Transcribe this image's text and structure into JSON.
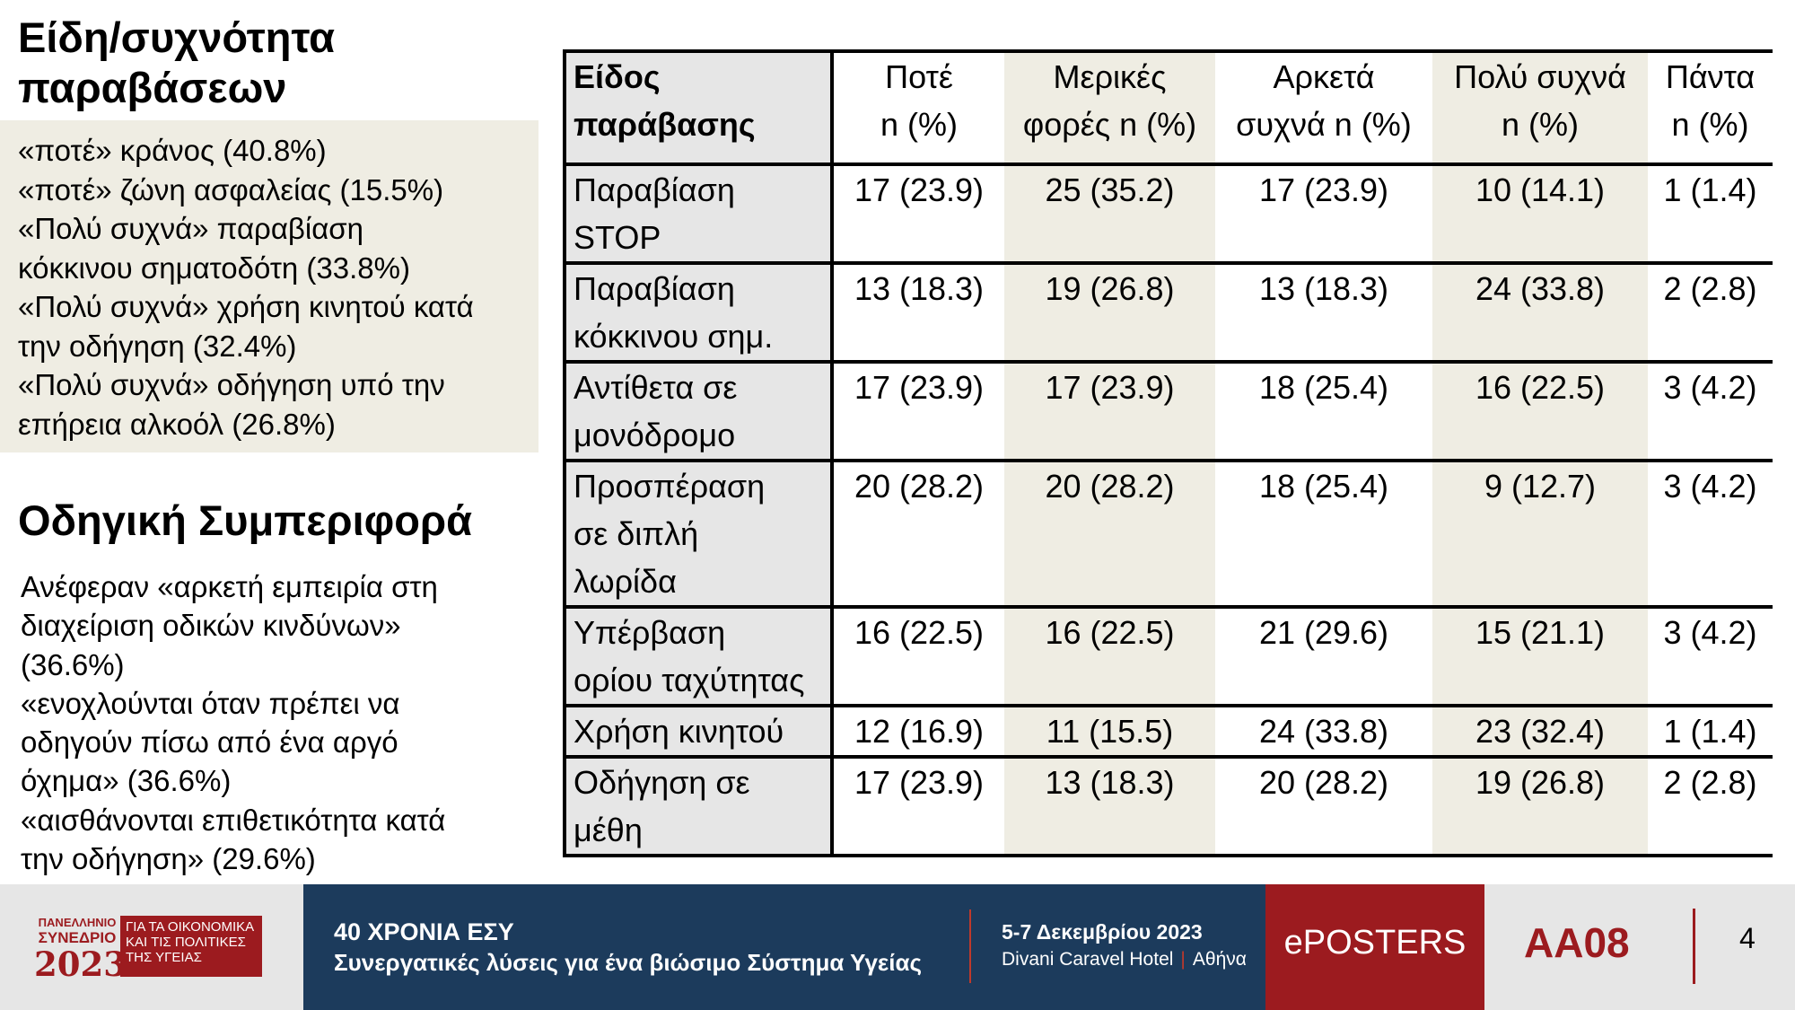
{
  "left": {
    "violations_title": "Είδη/συχνότητα παραβάσεων",
    "violations_lines": [
      "«ποτέ» κράνος (40.8%)",
      "«ποτέ» ζώνη ασφαλείας (15.5%)",
      "«Πολύ συχνά» παραβίαση",
      "κόκκινου σηματοδότη (33.8%)",
      "«Πολύ συχνά» χρήση κινητού κατά",
      "την οδήγηση (32.4%)",
      "«Πολύ συχνά» οδήγηση υπό την",
      "επήρεια αλκοόλ (26.8%)"
    ],
    "behavior_title": "Οδηγική Συμπεριφορά",
    "behavior_lines": [
      "Ανέφεραν «αρκετή εμπειρία στη",
      "διαχείριση οδικών κινδύνων»",
      "(36.6%)",
      "«ενοχλούνται όταν πρέπει να",
      "οδηγούν πίσω από ένα αργό",
      "όχημα» (36.6%)",
      "«αισθάνονται επιθετικότητα κατά",
      "την οδήγηση» (29.6%)"
    ]
  },
  "table": {
    "headers": [
      "Είδος\nπαράβασης",
      "Ποτέ\nn (%)",
      "Μερικές\nφορές n (%)",
      "Αρκετά\nσυχνά n (%)",
      "Πολύ συχνά\nn (%)",
      "Πάντα\nn (%)"
    ],
    "rows": [
      {
        "type": "Παραβίαση\nSTOP",
        "values": [
          "17 (23.9)",
          "25 (35.2)",
          "17 (23.9)",
          "10 (14.1)",
          "1 (1.4)"
        ]
      },
      {
        "type": "Παραβίαση\nκόκκινου σημ.",
        "values": [
          "13 (18.3)",
          "19 (26.8)",
          "13 (18.3)",
          "24 (33.8)",
          "2 (2.8)"
        ]
      },
      {
        "type": "Αντίθετα σε\nμονόδρομο",
        "values": [
          "17 (23.9)",
          "17 (23.9)",
          "18 (25.4)",
          "16 (22.5)",
          "3 (4.2)"
        ]
      },
      {
        "type": "Προσπέραση\nσε διπλή\nλωρίδα",
        "values": [
          "20 (28.2)",
          "20 (28.2)",
          "18 (25.4)",
          "9 (12.7)",
          "3 (4.2)"
        ]
      },
      {
        "type": "Υπέρβαση\nορίου ταχύτητας",
        "values": [
          "16 (22.5)",
          "16 (22.5)",
          "21 (29.6)",
          "15 (21.1)",
          "3 (4.2)"
        ]
      },
      {
        "type": "Χρήση κινητού",
        "values": [
          "12 (16.9)",
          "11 (15.5)",
          "24 (33.8)",
          "23 (32.4)",
          "1 (1.4)"
        ]
      },
      {
        "type": "Οδήγηση σε\nμέθη",
        "values": [
          "17 (23.9)",
          "13 (18.3)",
          "20 (28.2)",
          "19 (26.8)",
          "2 (2.8)"
        ]
      }
    ]
  },
  "footer": {
    "logo": {
      "line1": "ΠΑΝΕΛΛΗΝΙΟ",
      "line2": "ΣΥΝΕΔΡΙΟ",
      "year": "2023",
      "box_lines": [
        "ΓΙΑ ΤΑ ΟΙΚΟΝΟΜΙΚΑ",
        "ΚΑΙ ΤΙΣ ΠΟΛΙΤΙΚΕΣ",
        "ΤΗΣ ΥΓΕΙΑΣ"
      ]
    },
    "title": "40 ΧΡΟΝΙΑ ΕΣΥ",
    "subtitle": "Συνεργατικές λύσεις για ένα βιώσιμο Σύστημα Υγείας",
    "dates": "5-7 Δεκεμβρίου 2023",
    "venue": "Divani Caravel Hotel",
    "city": "Αθήνα",
    "eposters": "ePOSTERS",
    "code": "AA08",
    "page": "4"
  },
  "colors": {
    "accent_red": "#9c1b1f",
    "footer_blue": "#1c3b5c",
    "beige": "#efede3",
    "gray": "#e6e6e6"
  }
}
